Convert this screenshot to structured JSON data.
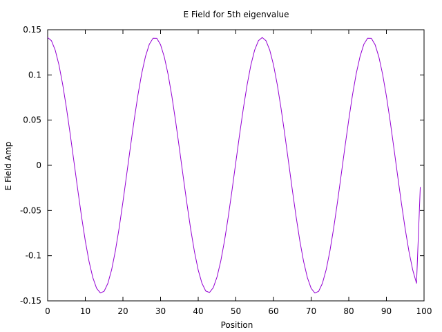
{
  "chart_data": {
    "type": "line",
    "title": "E Field for 5th eigenvalue",
    "xlabel": "Position",
    "ylabel": "E Field Amp",
    "xlim": [
      0,
      100
    ],
    "ylim": [
      -0.15,
      0.15
    ],
    "xticks": [
      "0",
      "10",
      "20",
      "30",
      "40",
      "50",
      "60",
      "70",
      "80",
      "90",
      "100"
    ],
    "yticks": [
      "-0.15",
      "-0.1",
      "-0.05",
      "0",
      "0.05",
      "0.1",
      "0.15"
    ],
    "grid": false,
    "line_color": "#9400d3",
    "series": [
      {
        "values": [
          [
            0,
            0.1414
          ],
          [
            1,
            0.1379
          ],
          [
            2,
            0.1276
          ],
          [
            3,
            0.1112
          ],
          [
            4,
            0.0893
          ],
          [
            5,
            0.0633
          ],
          [
            6,
            0.0342
          ],
          [
            7,
            0.0036
          ],
          [
            8,
            -0.0271
          ],
          [
            9,
            -0.0567
          ],
          [
            10,
            -0.0836
          ],
          [
            11,
            -0.1065
          ],
          [
            12,
            -0.1242
          ],
          [
            13,
            -0.1361
          ],
          [
            14,
            -0.1412
          ],
          [
            15,
            -0.1394
          ],
          [
            16,
            -0.1306
          ],
          [
            17,
            -0.1155
          ],
          [
            18,
            -0.0945
          ],
          [
            19,
            -0.0692
          ],
          [
            20,
            -0.0405
          ],
          [
            21,
            -0.01
          ],
          [
            22,
            0.0207
          ],
          [
            23,
            0.0506
          ],
          [
            24,
            0.0781
          ],
          [
            25,
            0.1018
          ],
          [
            26,
            0.1206
          ],
          [
            27,
            0.1338
          ],
          [
            28,
            0.1406
          ],
          [
            29,
            0.1405
          ],
          [
            30,
            0.1334
          ],
          [
            31,
            0.1198
          ],
          [
            32,
            0.1006
          ],
          [
            33,
            0.0765
          ],
          [
            34,
            0.0487
          ],
          [
            35,
            0.0187
          ],
          [
            36,
            -0.0121
          ],
          [
            37,
            -0.0423
          ],
          [
            38,
            -0.0706
          ],
          [
            39,
            -0.0955
          ],
          [
            40,
            -0.1159
          ],
          [
            41,
            -0.1306
          ],
          [
            42,
            -0.1391
          ],
          [
            43,
            -0.1407
          ],
          [
            44,
            -0.1354
          ],
          [
            45,
            -0.1235
          ],
          [
            46,
            -0.1058
          ],
          [
            47,
            -0.0832
          ],
          [
            48,
            -0.0565
          ],
          [
            49,
            -0.0271
          ],
          [
            50,
            0.0036
          ]
        ]
      },
      {
        "values": [
          [
            51,
            0.0343
          ],
          [
            52,
            0.0632
          ],
          [
            53,
            0.0892
          ],
          [
            54,
            0.1111
          ],
          [
            55,
            0.1276
          ],
          [
            56,
            0.1379
          ],
          [
            57,
            0.1414
          ],
          [
            58,
            0.1379
          ],
          [
            59,
            0.1276
          ],
          [
            60,
            0.1112
          ],
          [
            61,
            0.0894
          ],
          [
            62,
            0.0633
          ],
          [
            63,
            0.0342
          ],
          [
            64,
            0.0037
          ],
          [
            65,
            -0.0271
          ],
          [
            66,
            -0.0566
          ],
          [
            67,
            -0.0836
          ],
          [
            68,
            -0.1064
          ],
          [
            69,
            -0.1242
          ],
          [
            70,
            -0.1361
          ],
          [
            71,
            -0.1413
          ],
          [
            72,
            -0.1394
          ],
          [
            73,
            -0.1306
          ],
          [
            74,
            -0.1155
          ],
          [
            75,
            -0.0946
          ],
          [
            76,
            -0.0692
          ],
          [
            77,
            -0.0406
          ],
          [
            78,
            -0.0101
          ],
          [
            79,
            0.0207
          ],
          [
            80,
            0.0505
          ],
          [
            81,
            0.0781
          ],
          [
            82,
            0.1018
          ],
          [
            83,
            0.1205
          ],
          [
            84,
            0.1338
          ],
          [
            85,
            0.1406
          ],
          [
            86,
            0.1405
          ],
          [
            87,
            0.1334
          ],
          [
            88,
            0.1199
          ],
          [
            89,
            0.1006
          ],
          [
            90,
            0.0766
          ],
          [
            91,
            0.0488
          ],
          [
            92,
            0.0187
          ],
          [
            93,
            -0.0121
          ],
          [
            94,
            -0.0423
          ],
          [
            95,
            -0.0706
          ],
          [
            96,
            -0.0955
          ],
          [
            97,
            -0.1159
          ],
          [
            98,
            -0.1306
          ],
          [
            99,
            -0.024
          ]
        ]
      }
    ]
  }
}
